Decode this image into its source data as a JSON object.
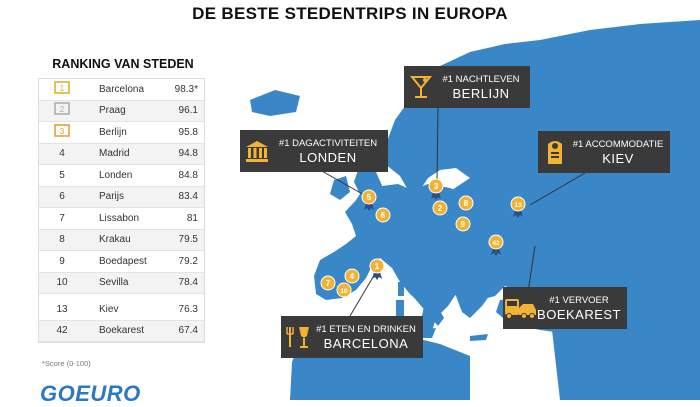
{
  "title": "DE BESTE STEDENTRIPS IN EUROPA",
  "ranking": {
    "title": "RANKING VAN STEDEN",
    "rows": [
      {
        "pos": "1",
        "city": "Barcelona",
        "score": "98.3*"
      },
      {
        "pos": "2",
        "city": "Praag",
        "score": "96.1"
      },
      {
        "pos": "3",
        "city": "Berlijn",
        "score": "95.8"
      },
      {
        "pos": "4",
        "city": "Madrid",
        "score": "94.8"
      },
      {
        "pos": "5",
        "city": "Londen",
        "score": "84.8"
      },
      {
        "pos": "6",
        "city": "Parijs",
        "score": "83.4"
      },
      {
        "pos": "7",
        "city": "Lissabon",
        "score": "81"
      },
      {
        "pos": "8",
        "city": "Krakau",
        "score": "79.5"
      },
      {
        "pos": "9",
        "city": "Boedapest",
        "score": "79.2"
      },
      {
        "pos": "10",
        "city": "Sevilla",
        "score": "78.4"
      },
      {
        "pos": "13",
        "city": "Kiev",
        "score": "76.3"
      },
      {
        "pos": "42",
        "city": "Boekarest",
        "score": "67.4"
      }
    ],
    "footnote": "*Score (0-100)"
  },
  "logo": "GOEURO",
  "callouts": {
    "nightlife": {
      "category": "#1 NACHTLEVEN",
      "city": "BERLIJN",
      "icon": "cocktail-icon"
    },
    "daytime": {
      "category": "#1 DAGACTIVITEITEN",
      "city": "LONDEN",
      "icon": "museum-icon"
    },
    "accommodation": {
      "category": "#1 ACCOMMODATIE",
      "city": "KIEV",
      "icon": "door-hanger-icon"
    },
    "transport": {
      "category": "#1 VERVOER",
      "city": "BOEKAREST",
      "icon": "bus-car-icon"
    },
    "food": {
      "category": "#1 ETEN EN DRINKEN",
      "city": "BARCELONA",
      "icon": "fork-glass-icon"
    }
  },
  "pins": [
    "1",
    "2",
    "3",
    "4",
    "5",
    "6",
    "7",
    "8",
    "9",
    "10",
    "13",
    "42"
  ],
  "colors": {
    "map": "#3a87c8",
    "pin": "#f2b233",
    "callout": "#3a3a3a",
    "logo": "#2b78c5"
  }
}
